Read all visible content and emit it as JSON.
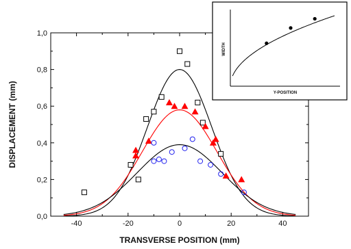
{
  "chart_data": [
    {
      "type": "scatter",
      "title": "",
      "xlabel": "TRANSVERSE POSITION (mm)",
      "ylabel": "DISPLACEMENT (mm)",
      "xlim": [
        -50,
        50
      ],
      "ylim": [
        0,
        1.0
      ],
      "xticks": [
        -40,
        -20,
        0,
        20,
        40
      ],
      "yticks": [
        0,
        0.2,
        0.4,
        0.6,
        0.8,
        1.0
      ],
      "xtick_labels": [
        "-40",
        "-20",
        "0",
        "20",
        "40"
      ],
      "ytick_labels": [
        "0,0",
        "0,2",
        "0,4",
        "0,6",
        "0,8",
        "1,0"
      ],
      "grid": false,
      "legend": "none",
      "series": [
        {
          "marker": "open-square",
          "color": "#000000",
          "points": [
            [
              -37,
              0.13
            ],
            [
              -19,
              0.28
            ],
            [
              -16,
              0.2
            ],
            [
              -13,
              0.53
            ],
            [
              -10,
              0.57
            ],
            [
              -7,
              0.65
            ],
            [
              0,
              0.9
            ],
            [
              3,
              0.83
            ],
            [
              7,
              0.62
            ],
            [
              9,
              0.51
            ],
            [
              16,
              0.34
            ]
          ]
        },
        {
          "marker": "filled-triangle",
          "color": "#ff0000",
          "points": [
            [
              -17,
              0.36
            ],
            [
              -17,
              0.33
            ],
            [
              -12,
              0.41
            ],
            [
              -4,
              0.62
            ],
            [
              -2,
              0.6
            ],
            [
              2,
              0.6
            ],
            [
              6,
              0.57
            ],
            [
              10,
              0.49
            ],
            [
              13,
              0.4
            ],
            [
              14,
              0.42
            ],
            [
              18,
              0.22
            ],
            [
              24,
              0.2
            ]
          ]
        },
        {
          "marker": "open-circle",
          "color": "#2222ee",
          "points": [
            [
              -10,
              0.4
            ],
            [
              -10,
              0.3
            ],
            [
              -8,
              0.31
            ],
            [
              -6,
              0.3
            ],
            [
              -3,
              0.35
            ],
            [
              2,
              0.37
            ],
            [
              5,
              0.42
            ],
            [
              8,
              0.3
            ],
            [
              12,
              0.28
            ],
            [
              16,
              0.23
            ],
            [
              25,
              0.13
            ]
          ]
        },
        {
          "marker": "line",
          "color": "#000000",
          "curve": {
            "amplitude": 0.8,
            "center": 0,
            "sigma": 12.5,
            "from": -45,
            "to": 45
          }
        },
        {
          "marker": "line",
          "color": "#ff0000",
          "curve": {
            "amplitude": 0.58,
            "center": 0,
            "sigma": 14.5,
            "from": -45,
            "to": 45
          }
        },
        {
          "marker": "line",
          "color": "#000000",
          "curve": {
            "amplitude": 0.39,
            "center": 0,
            "sigma": 16.5,
            "from": -45,
            "to": 45
          }
        }
      ]
    },
    {
      "type": "line",
      "title": "",
      "xlabel": "Y-POSITION",
      "ylabel": "WIDTH",
      "xticks": [],
      "yticks": [],
      "grid": false,
      "legend": "none",
      "series": [
        {
          "marker": "line",
          "color": "#000000",
          "curve": "sqrt"
        },
        {
          "marker": "filled-circle",
          "color": "#000000",
          "points": [
            [
              0.33,
              0.56
            ],
            [
              0.55,
              0.76
            ],
            [
              0.77,
              0.88
            ]
          ]
        }
      ]
    }
  ]
}
